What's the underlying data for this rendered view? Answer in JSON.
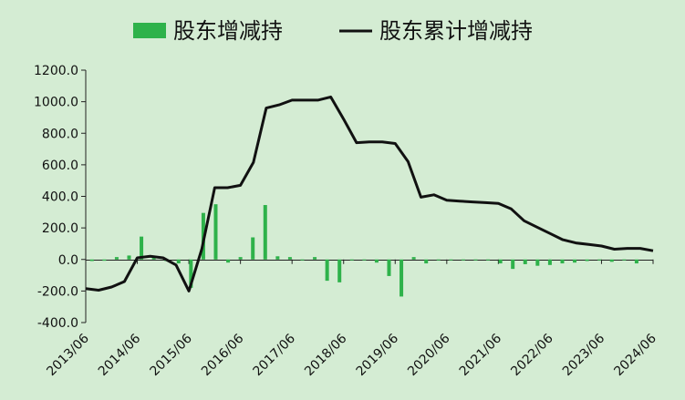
{
  "chart_data": {
    "type": "bar+line",
    "legend": {
      "position": "top",
      "bar_label": "股东增减持",
      "line_label": "股东累计增减持"
    },
    "x_tick_labels": [
      "2013/06",
      "2014/06",
      "2015/06",
      "2016/06",
      "2017/06",
      "2018/06",
      "2019/06",
      "2020/06",
      "2021/06",
      "2022/06",
      "2023/06",
      "2024/06"
    ],
    "y_tick_labels": [
      "1200.0",
      "1000.0",
      "800.0",
      "600.0",
      "400.0",
      "200.0",
      "0.0",
      "-200.0",
      "-400.0"
    ],
    "ylim": [
      -400,
      1200
    ],
    "grid": false,
    "colors": {
      "background": "#d4ecd3",
      "bar": "#2eb24a",
      "line": "#111111"
    },
    "bar_series": {
      "name": "股东增减持",
      "x": [
        2013.5,
        2013.75,
        2014.0,
        2014.25,
        2014.5,
        2014.75,
        2015.0,
        2015.25,
        2015.5,
        2015.75,
        2016.0,
        2016.25,
        2016.5,
        2016.75,
        2017.0,
        2017.25,
        2017.5,
        2017.75,
        2018.0,
        2018.25,
        2018.5,
        2018.75,
        2019.0,
        2019.25,
        2019.5,
        2019.75,
        2020.0,
        2020.25,
        2020.5,
        2020.75,
        2021.0,
        2021.25,
        2021.5,
        2021.75,
        2022.0,
        2022.25,
        2022.5,
        2022.75,
        2023.0,
        2023.25,
        2023.5,
        2023.75,
        2024.0,
        2024.25,
        2024.5
      ],
      "values": [
        -10,
        -8,
        15,
        25,
        145,
        15,
        -10,
        -25,
        -180,
        295,
        350,
        -20,
        15,
        140,
        345,
        20,
        15,
        -5,
        15,
        -135,
        -145,
        -5,
        -5,
        -20,
        -105,
        -235,
        15,
        -25,
        -5,
        -5,
        -5,
        -5,
        -5,
        -25,
        -60,
        -30,
        -40,
        -35,
        -25,
        -20,
        -10,
        -5,
        -15,
        -5,
        -25
      ],
      "positions": [
        0.12,
        0.36,
        0.6,
        0.84,
        1.08,
        1.32,
        1.56,
        1.8,
        2.04,
        2.28,
        2.52,
        2.76,
        3.0,
        3.24,
        3.48,
        3.72,
        3.96,
        4.2,
        4.44,
        4.68,
        4.92,
        5.16,
        5.4,
        5.64,
        5.88,
        6.12,
        6.36,
        6.6,
        6.84,
        7.08,
        7.32,
        7.56,
        7.8,
        8.04,
        8.28,
        8.52,
        8.76,
        9.0,
        9.24,
        9.48,
        9.72,
        9.96,
        10.2,
        10.44,
        10.68
      ]
    },
    "line_series": {
      "name": "股东累计增减持",
      "x": [
        0.0,
        0.25,
        0.5,
        0.75,
        1.0,
        1.25,
        1.5,
        1.75,
        2.0,
        2.25,
        2.5,
        2.75,
        3.0,
        3.25,
        3.5,
        3.75,
        4.0,
        4.25,
        4.5,
        4.75,
        5.0,
        5.25,
        5.5,
        5.75,
        6.0,
        6.25,
        6.5,
        6.75,
        7.0,
        7.25,
        7.5,
        7.75,
        8.0,
        8.25,
        8.5,
        8.75,
        9.0,
        9.25,
        9.5,
        9.75,
        10.0,
        10.25,
        10.5,
        10.75,
        11.0
      ],
      "values": [
        -185,
        -195,
        -175,
        -140,
        10,
        20,
        10,
        -35,
        -200,
        65,
        455,
        455,
        470,
        615,
        960,
        980,
        1010,
        1010,
        1010,
        1030,
        890,
        740,
        745,
        745,
        735,
        620,
        395,
        410,
        375,
        370,
        365,
        360,
        355,
        320,
        245,
        205,
        165,
        125,
        105,
        95,
        85,
        65,
        70,
        70,
        55
      ]
    }
  }
}
